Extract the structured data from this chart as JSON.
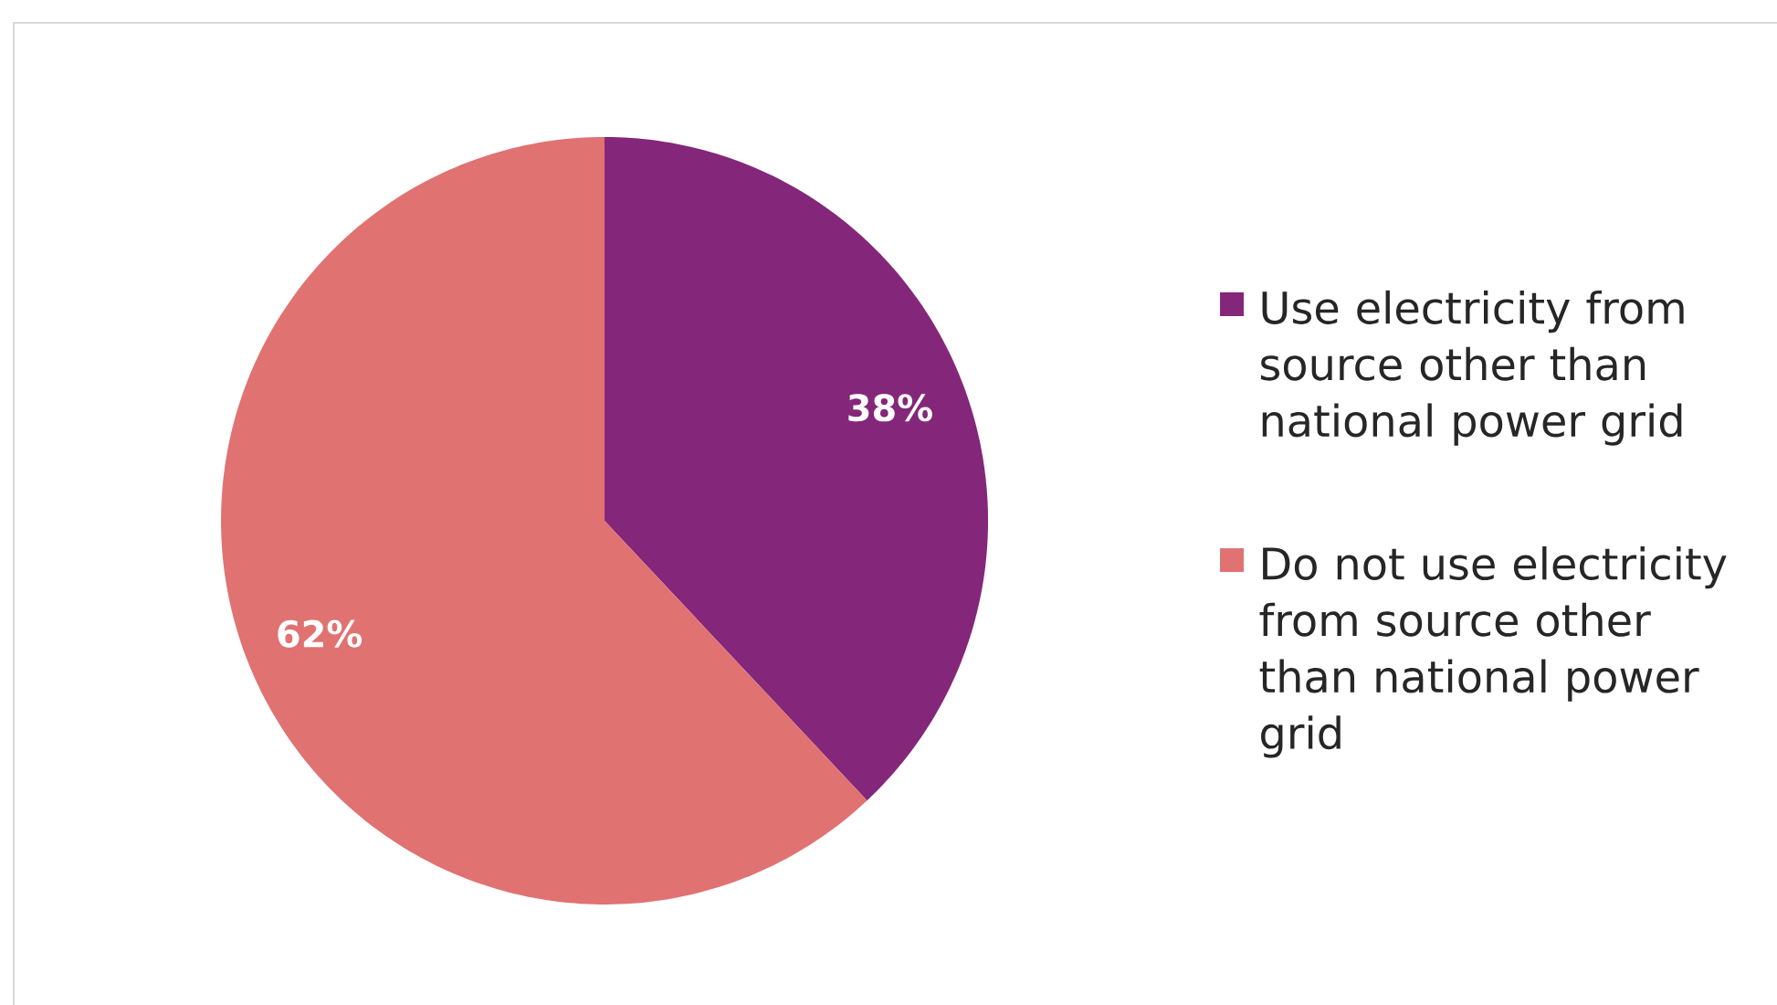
{
  "chart_data": {
    "type": "pie",
    "categories": [
      "Use electricity from source other than national power grid",
      "Do not use electricity from source other than national power grid"
    ],
    "values": [
      38,
      62
    ],
    "colors": [
      "#84267a",
      "#e07272"
    ],
    "value_labels": [
      "38%",
      "62%"
    ],
    "legend": "right"
  }
}
